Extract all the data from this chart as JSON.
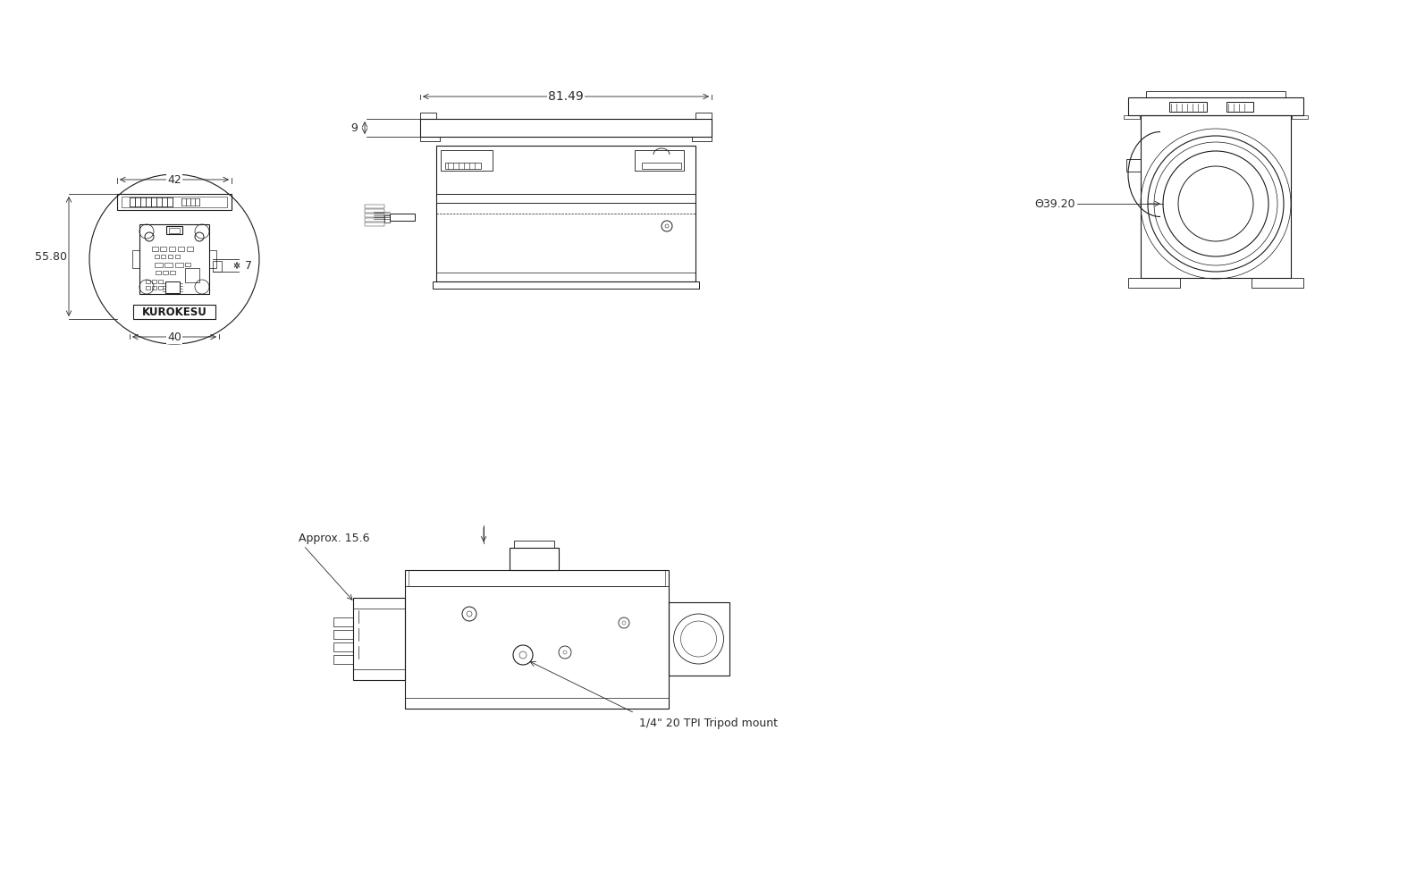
{
  "bg_color": "#ffffff",
  "line_color": "#1a1a1a",
  "dim_color": "#2a2a2a",
  "line_width": 0.8,
  "thick_line": 1.4,
  "dim_line": 0.6,
  "font_size": 9,
  "dimensions": {
    "top_width": "42",
    "height": "55.80",
    "bottom_width": "40",
    "side_7": "7",
    "length": "81.49",
    "depth": "9",
    "diameter": "Θ39.20",
    "approx": "Approx. 15.6",
    "tripod": "1/4\" 20 TPI Tripod mount"
  },
  "brand": "KUROKESU"
}
